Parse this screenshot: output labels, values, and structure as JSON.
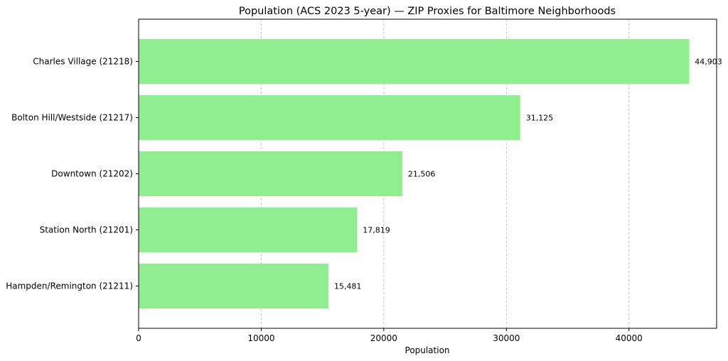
{
  "chart_data": {
    "type": "bar",
    "orientation": "horizontal",
    "title": "Population (ACS 2023 5-year) — ZIP Proxies for Baltimore Neighborhoods",
    "xlabel": "Population",
    "ylabel": "",
    "categories": [
      "Charles Village (21218)",
      "Bolton Hill/Westside (21217)",
      "Downtown (21202)",
      "Station North (21201)",
      "Hampden/Remington (21211)"
    ],
    "values": [
      44903,
      31125,
      21506,
      17819,
      15481
    ],
    "value_labels": [
      "44,903",
      "31,125",
      "21,506",
      "17,819",
      "15,481"
    ],
    "xlim": [
      0,
      47148
    ],
    "xticks": [
      0,
      10000,
      20000,
      30000,
      40000
    ],
    "xtick_labels": [
      "0",
      "10000",
      "20000",
      "30000",
      "40000"
    ],
    "grid": "vertical dashed",
    "bar_color": "#90ee90"
  }
}
